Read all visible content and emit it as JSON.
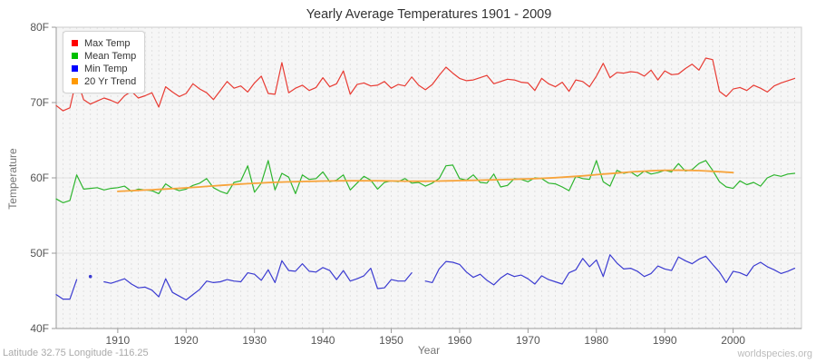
{
  "header": {
    "title": "Yearly Average Temperatures 1901 - 2009"
  },
  "footer": {
    "left": "Latitude 32.75 Longitude -116.25",
    "right": "worldspecies.org"
  },
  "colors": {
    "plot_bg": "#f6f6f6",
    "grid": "#e0e0e0",
    "border": "#cccccc",
    "axis": "#999999",
    "tick_text": "#555555",
    "title_text": "#333333",
    "axis_label_text": "#757575"
  },
  "chart_data": {
    "type": "line",
    "title": "Yearly Average Temperatures 1901 - 2009",
    "xlabel": "Year",
    "ylabel": "Temperature",
    "xlim": [
      1901,
      2010
    ],
    "ylim": [
      40,
      80
    ],
    "grid": {
      "vertical": "dashed, 1 per year",
      "horizontal": [
        50,
        60,
        70
      ],
      "legend_position": "top-left"
    },
    "x_ticks": [
      1910,
      1920,
      1930,
      1940,
      1950,
      1960,
      1970,
      1980,
      1990,
      2000
    ],
    "y_tick_values": [
      40,
      50,
      60,
      70,
      80
    ],
    "y_tick_labels": [
      "40F",
      "50F",
      "60F",
      "70F",
      "80F"
    ],
    "x": [
      1901,
      1902,
      1903,
      1904,
      1905,
      1906,
      1907,
      1908,
      1909,
      1910,
      1911,
      1912,
      1913,
      1914,
      1915,
      1916,
      1917,
      1918,
      1919,
      1920,
      1921,
      1922,
      1923,
      1924,
      1925,
      1926,
      1927,
      1928,
      1929,
      1930,
      1931,
      1932,
      1933,
      1934,
      1935,
      1936,
      1937,
      1938,
      1939,
      1940,
      1941,
      1942,
      1943,
      1944,
      1945,
      1946,
      1947,
      1948,
      1949,
      1950,
      1951,
      1952,
      1953,
      1954,
      1955,
      1956,
      1957,
      1958,
      1959,
      1960,
      1961,
      1962,
      1963,
      1964,
      1965,
      1966,
      1967,
      1968,
      1969,
      1970,
      1971,
      1972,
      1973,
      1974,
      1975,
      1976,
      1977,
      1978,
      1979,
      1980,
      1981,
      1982,
      1983,
      1984,
      1985,
      1986,
      1987,
      1988,
      1989,
      1990,
      1991,
      1992,
      1993,
      1994,
      1995,
      1996,
      1997,
      1998,
      1999,
      2000,
      2001,
      2002,
      2003,
      2004,
      2005,
      2006,
      2007,
      2008,
      2009
    ],
    "series": [
      {
        "name": "Max Temp",
        "color": "#e83b33",
        "legend_color": "#ff0000",
        "width": 1.2,
        "values": [
          69.6,
          68.9,
          69.3,
          73.2,
          70.4,
          69.8,
          70.2,
          70.6,
          70.3,
          69.9,
          70.9,
          71.5,
          70.6,
          70.9,
          71.3,
          69.4,
          72.1,
          71.4,
          70.8,
          71.2,
          72.5,
          71.8,
          71.3,
          70.4,
          71.6,
          72.8,
          71.9,
          72.2,
          71.4,
          72.6,
          73.5,
          71.2,
          71.1,
          75.3,
          71.3,
          71.9,
          72.3,
          71.6,
          72.0,
          73.3,
          72.1,
          72.5,
          74.2,
          71.1,
          72.4,
          72.6,
          72.2,
          72.3,
          72.8,
          71.9,
          72.4,
          72.2,
          73.4,
          72.3,
          71.7,
          72.4,
          73.6,
          74.7,
          73.9,
          73.2,
          72.9,
          73.0,
          73.3,
          73.6,
          72.5,
          72.8,
          73.1,
          73.0,
          72.7,
          72.6,
          71.6,
          73.2,
          72.5,
          72.1,
          72.7,
          71.5,
          73.0,
          72.8,
          72.1,
          73.5,
          75.2,
          73.3,
          74.0,
          73.9,
          74.1,
          74.0,
          73.5,
          74.3,
          73.0,
          74.2,
          73.7,
          73.8,
          74.5,
          75.1,
          74.3,
          75.9,
          75.7,
          71.5,
          70.8,
          71.8,
          72.0,
          71.6,
          72.3,
          71.9,
          71.4,
          72.2,
          72.6,
          72.9,
          73.2
        ]
      },
      {
        "name": "Mean Temp",
        "color": "#2eb52e",
        "legend_color": "#00bf00",
        "width": 1.2,
        "values": [
          57.2,
          56.7,
          57.0,
          60.4,
          58.5,
          58.6,
          58.7,
          58.4,
          58.6,
          58.7,
          58.9,
          58.2,
          58.5,
          58.4,
          58.3,
          57.9,
          59.2,
          58.6,
          58.3,
          58.5,
          59.0,
          59.3,
          59.9,
          58.7,
          58.2,
          57.9,
          59.4,
          59.6,
          61.6,
          58.1,
          59.3,
          62.3,
          58.4,
          60.6,
          60.1,
          57.9,
          60.4,
          59.8,
          59.9,
          60.8,
          59.5,
          59.7,
          60.4,
          58.4,
          59.3,
          60.2,
          59.7,
          58.5,
          59.4,
          59.6,
          59.5,
          59.9,
          59.3,
          59.4,
          58.9,
          59.3,
          59.9,
          61.6,
          61.7,
          59.9,
          59.7,
          60.4,
          59.4,
          59.3,
          60.5,
          58.8,
          59.0,
          59.9,
          59.8,
          59.5,
          60.0,
          59.9,
          59.3,
          59.2,
          58.8,
          58.3,
          60.2,
          59.9,
          59.8,
          62.3,
          59.5,
          58.9,
          61.0,
          60.6,
          60.8,
          60.2,
          60.9,
          60.5,
          60.7,
          61.0,
          60.8,
          61.9,
          60.9,
          61.1,
          61.9,
          62.3,
          61.0,
          59.5,
          58.8,
          58.6,
          59.6,
          59.1,
          59.4,
          58.9,
          60.0,
          60.4,
          60.2,
          60.5,
          60.6
        ]
      },
      {
        "name": "Min Temp",
        "color": "#3b3bd1",
        "legend_color": "#0000ff",
        "width": 1.2,
        "values": [
          44.5,
          43.9,
          43.9,
          46.5,
          null,
          46.9,
          null,
          46.2,
          46.0,
          46.3,
          46.6,
          45.9,
          45.4,
          45.5,
          45.1,
          44.2,
          46.6,
          44.8,
          44.3,
          43.8,
          44.5,
          45.2,
          46.3,
          46.1,
          46.2,
          46.5,
          46.3,
          46.2,
          47.4,
          47.2,
          46.4,
          47.8,
          46.1,
          49.0,
          47.7,
          47.6,
          48.6,
          47.6,
          47.5,
          48.1,
          47.7,
          46.5,
          47.7,
          46.3,
          46.6,
          47.0,
          48.0,
          45.3,
          45.4,
          46.5,
          46.3,
          46.3,
          47.4,
          null,
          46.3,
          46.1,
          47.9,
          48.9,
          48.8,
          48.5,
          47.5,
          46.8,
          47.2,
          46.4,
          45.8,
          46.7,
          47.3,
          46.9,
          47.1,
          46.6,
          45.9,
          47.0,
          46.5,
          46.2,
          45.9,
          47.4,
          47.8,
          49.3,
          48.2,
          49.1,
          46.9,
          49.8,
          48.7,
          47.9,
          48.0,
          47.6,
          46.9,
          47.3,
          48.3,
          47.9,
          47.7,
          49.5,
          49.0,
          48.6,
          49.2,
          49.6,
          48.5,
          47.5,
          46.1,
          47.6,
          47.4,
          47.0,
          48.3,
          48.8,
          48.2,
          47.8,
          47.3,
          47.6,
          48.0
        ]
      },
      {
        "name": "20 Yr Trend",
        "color": "#f7a43c",
        "legend_color": "#ff9900",
        "width": 1.8,
        "values": [
          null,
          null,
          null,
          null,
          null,
          null,
          null,
          null,
          null,
          58.2,
          58.25,
          58.3,
          58.34,
          58.38,
          58.42,
          58.47,
          58.52,
          58.57,
          58.62,
          58.68,
          58.74,
          58.8,
          58.87,
          58.93,
          59.0,
          59.06,
          59.12,
          59.18,
          59.23,
          59.28,
          59.33,
          59.37,
          59.41,
          59.44,
          59.47,
          59.5,
          59.52,
          59.54,
          59.56,
          59.58,
          59.59,
          59.6,
          59.61,
          59.61,
          59.62,
          59.62,
          59.62,
          59.61,
          59.6,
          59.59,
          59.58,
          59.57,
          59.56,
          59.56,
          59.56,
          59.57,
          59.58,
          59.6,
          59.62,
          59.64,
          59.66,
          59.68,
          59.7,
          59.72,
          59.74,
          59.76,
          59.78,
          59.81,
          59.84,
          59.87,
          59.9,
          59.94,
          59.98,
          60.03,
          60.08,
          60.14,
          60.2,
          60.27,
          60.34,
          60.42,
          60.5,
          60.57,
          60.64,
          60.71,
          60.78,
          60.84,
          60.89,
          60.94,
          60.97,
          61.0,
          61.01,
          61.02,
          61.01,
          60.99,
          60.96,
          60.92,
          60.87,
          60.82,
          60.76,
          60.7,
          null,
          null,
          null,
          null,
          null,
          null,
          null,
          null,
          null
        ]
      }
    ]
  }
}
